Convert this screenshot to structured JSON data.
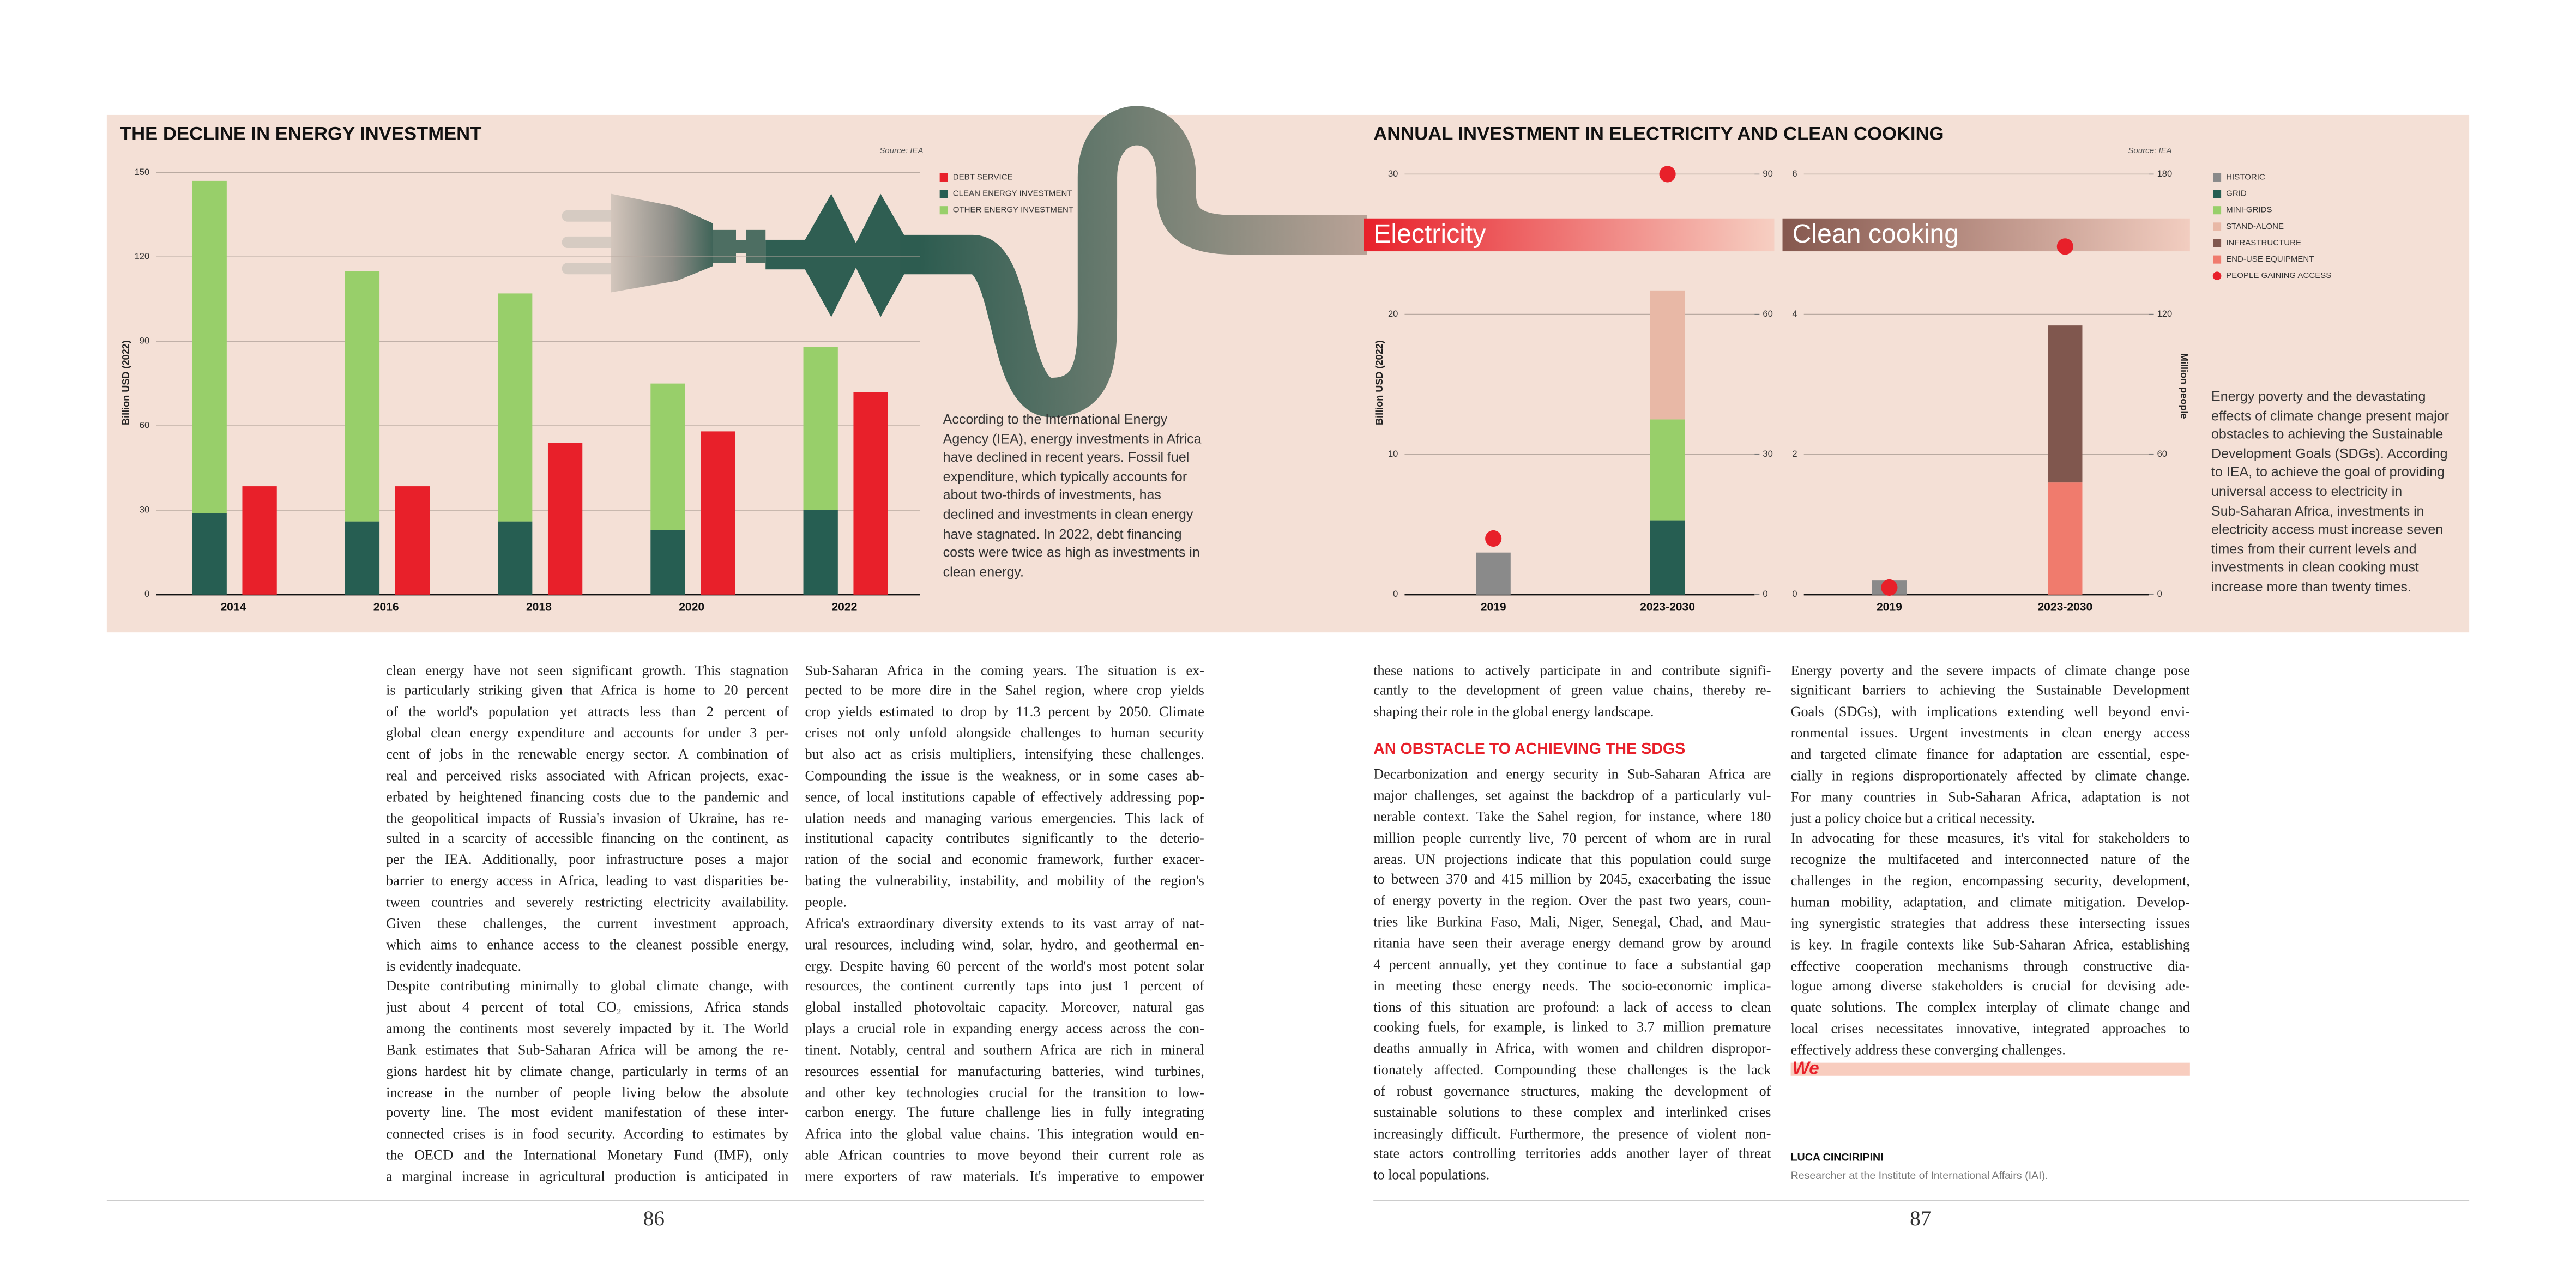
{
  "chart_data": [
    {
      "type": "bar",
      "title": "THE DECLINE IN ENERGY INVESTMENT",
      "source": "Source: IEA",
      "y_label": "Billion USD (2022)",
      "categories": [
        "2014",
        "2016",
        "2018",
        "2020",
        "2022"
      ],
      "series": [
        {
          "name": "DEBT SERVICE",
          "color": "#e8202a",
          "values": [
            38.5,
            38.5,
            54,
            58,
            72
          ]
        },
        {
          "name": "CLEAN ENERGY INVESTMENT",
          "color": "#265e52",
          "values": [
            29,
            26,
            26,
            23,
            30
          ]
        },
        {
          "name": "OTHER ENERGY INVESTMENT",
          "color": "#98cf6a",
          "values": [
            118,
            89,
            81,
            52,
            58
          ]
        }
      ],
      "stacks": [
        [
          1,
          2
        ],
        [
          0
        ]
      ],
      "ylim": [
        0,
        150
      ],
      "yticks": [
        0,
        30,
        60,
        90,
        120,
        150
      ],
      "grid": true,
      "caption": [
        "According to the International Energy",
        "Agency (IEA), energy investments in Africa",
        "have declined in recent years. Fossil fuel",
        "expenditure, which typically accounts for",
        "about two-thirds of investments, has",
        "declined and investments in clean energy",
        "have stagnated. In 2022, debt financing",
        "costs were twice as high as investments in",
        "clean energy."
      ]
    },
    {
      "type": "bar",
      "title": "ANNUAL INVESTMENT IN ELECTRICITY AND CLEAN COOKING",
      "source": "Source: IEA",
      "y_label": "Billion USD (2022)",
      "y2_label": "Million people",
      "legend": [
        {
          "name": "HISTORIC",
          "color": "#8a8a8a"
        },
        {
          "name": "GRID",
          "color": "#265e52"
        },
        {
          "name": "MINI-GRIDS",
          "color": "#98cf6a"
        },
        {
          "name": "STAND-ALONE",
          "color": "#e8b8a6"
        },
        {
          "name": "INFRASTRUCTURE",
          "color": "#80574e"
        },
        {
          "name": "END-USE EQUIPMENT",
          "color": "#f07b6d"
        },
        {
          "name": "PEOPLE GAINING ACCESS",
          "color": "#e8202a"
        }
      ],
      "panels": [
        {
          "label": "Electricity",
          "categories": [
            "2019",
            "2023-2030"
          ],
          "ylim": [
            0,
            30
          ],
          "yticks": [
            0,
            10,
            20,
            30
          ],
          "y2lim": [
            0,
            90
          ],
          "y2ticks": [
            0,
            30,
            60,
            90
          ],
          "grid": true,
          "stack": [
            0,
            1,
            2,
            3
          ],
          "series": [
            {
              "values": [
                3.0,
                null
              ]
            },
            {
              "values": [
                null,
                5.3
              ]
            },
            {
              "values": [
                null,
                7.2
              ]
            },
            {
              "values": [
                null,
                9.2
              ]
            },
            {
              "values": [
                null,
                null
              ]
            },
            {
              "values": [
                null,
                null
              ]
            },
            {
              "axis": "y2",
              "values": [
                12,
                90
              ]
            }
          ]
        },
        {
          "label": "Clean cooking",
          "categories": [
            "2019",
            "2023-2030"
          ],
          "ylim": [
            0,
            6
          ],
          "yticks": [
            0,
            2,
            4,
            6
          ],
          "y2lim": [
            0,
            180
          ],
          "y2ticks": [
            0,
            60,
            120,
            180
          ],
          "grid": true,
          "stack": [
            0,
            5,
            4
          ],
          "series": [
            {
              "values": [
                0.2,
                null
              ]
            },
            {
              "values": [
                null,
                null
              ]
            },
            {
              "values": [
                null,
                null
              ]
            },
            {
              "values": [
                null,
                null
              ]
            },
            {
              "values": [
                null,
                2.24
              ]
            },
            {
              "values": [
                null,
                1.6
              ]
            },
            {
              "axis": "y2",
              "values": [
                3,
                149
              ]
            }
          ]
        }
      ],
      "caption": [
        "Energy poverty and the devastating",
        "effects of climate change present major",
        "obstacles to achieving the Sustainable",
        "Development Goals (SDGs). According",
        "to IEA, to achieve the goal of providing",
        "universal access to electricity in",
        "Sub-Saharan Africa, investments in",
        "electricity access must increase seven",
        "times from their current levels and",
        "investments in clean cooking must",
        "increase more than twenty times."
      ]
    }
  ],
  "columns": [
    [
      {
        "lines": [
          "clean energy have not seen significant growth. This stagnation",
          "is particularly striking given that Africa is home to 20 percent",
          "of the world's population yet attracts less than 2 percent of",
          "global clean energy expenditure and accounts for under 3 per-",
          "cent of jobs in the renewable energy sector. A combination of",
          "real and perceived risks associated with African projects, exac-",
          "erbated by heightened financing costs due to the pandemic and",
          "the geopolitical impacts of Russia's invasion of Ukraine, has re-",
          "sulted in a scarcity of accessible financing on the continent, as",
          "per the IEA. Additionally, poor infrastructure poses a major",
          "barrier to energy access in Africa, leading to vast disparities be-",
          "tween countries and severely restricting electricity availability.",
          "Given these challenges, the current investment approach,",
          "which aims to enhance access to the cleanest possible energy,",
          "is evidently inadequate."
        ]
      },
      {
        "lines": [
          "Despite contributing minimally to global climate change, with",
          "just about 4 percent of total CO₂ emissions, Africa stands",
          "among the continents most severely impacted by it. The World",
          "Bank estimates that Sub-Saharan Africa will be among the re-",
          "gions hardest hit by climate change, particularly in terms of an",
          "increase in the number of people living below the absolute",
          "poverty line. The most evident manifestation of these inter-",
          "connected crises is in food security. According to estimates by",
          "the OECD and the International Monetary Fund (IMF), only",
          "a marginal increase in agricultural production is anticipated in"
        ],
        "open": true
      }
    ],
    [
      {
        "lines": [
          "Sub-Saharan Africa in the coming years. The situation is ex-",
          "pected to be more dire in the Sahel region, where crop yields",
          "crop yields estimated to drop by 11.3 percent by 2050. Climate",
          "crises not only unfold alongside challenges to human security",
          "but also act as crisis multipliers, intensifying these challenges.",
          "Compounding the issue is the weakness, or in some cases ab-",
          "sence, of local institutions capable of effectively addressing pop-",
          "ulation needs and managing various emergencies. This lack of",
          "institutional capacity contributes significantly to the deterio-",
          "ration of the social and economic framework, further exacer-",
          "bating the vulnerability, instability, and mobility of the region's",
          "people."
        ]
      },
      {
        "lines": [
          "Africa's extraordinary diversity extends to its vast array of nat-",
          "ural resources, including wind, solar, hydro, and geothermal en-",
          "ergy. Despite having 60 percent of the world's most potent solar",
          "resources, the continent currently taps into just 1 percent of",
          "global installed photovoltaic capacity. Moreover, natural gas",
          "plays a crucial role in expanding energy access across the con-",
          "tinent. Notably, central and southern Africa are rich in mineral",
          "resources essential for manufacturing batteries, wind turbines,",
          "and other key technologies crucial for the transition to low-",
          "carbon energy. The future challenge lies in fully integrating",
          "Africa into the global value chains. This integration would en-",
          "able African countries to move beyond their current role as",
          "mere exporters of raw materials. It's imperative to empower"
        ],
        "open": true
      }
    ],
    [
      {
        "lines": [
          "these nations to actively participate in and contribute signifi-",
          "cantly to the development of green value chains, thereby re-",
          "shaping their role in the global energy landscape."
        ]
      },
      {
        "heading": "AN OBSTACLE TO ACHIEVING THE SDGS"
      },
      {
        "lines": [
          "Decarbonization and energy security in Sub-Saharan Africa are",
          "major challenges, set against the backdrop of a particularly vul-",
          "nerable context. Take the Sahel region, for instance, where 180",
          "million people currently live, 70 percent of whom are in rural",
          "areas. UN projections indicate that this population could surge",
          "to between 370 and 415 million by 2045, exacerbating the issue",
          "of energy poverty in the region. Over the past two years, coun-",
          "tries like Burkina Faso, Mali, Niger, Senegal, Chad, and Mau-",
          "ritania have seen their average energy demand grow by around",
          "4 percent annually, yet they continue to face a substantial gap",
          "in meeting these energy needs. The socio-economic implica-",
          "tions of this situation are profound: a lack of access to clean",
          "cooking fuels, for example, is linked to 3.7 million premature",
          "deaths annually in Africa, with women and children dispropor-",
          "tionately affected. Compounding these challenges is the lack",
          "of robust governance structures, making the development of",
          "sustainable solutions to these complex and interlinked crises",
          "increasingly difficult. Furthermore, the presence of violent non-",
          "state actors controlling territories adds another layer of threat",
          "to local populations."
        ]
      }
    ],
    [
      {
        "lines": [
          "Energy poverty and the severe impacts of climate change pose",
          "significant barriers to achieving the Sustainable Development",
          "Goals (SDGs), with implications extending well beyond envi-",
          "ronmental issues. Urgent investments in clean energy access",
          "and targeted climate finance for adaptation are essential, espe-",
          "cially in regions disproportionately affected by climate change.",
          "For many countries in Sub-Saharan Africa, adaptation is not",
          "just a policy choice but a critical necessity."
        ]
      },
      {
        "lines": [
          "In advocating for these measures, it's vital for stakeholders to",
          "recognize the multifaceted and interconnected nature of the",
          "challenges in the region, encompassing security, development,",
          "human mobility, adaptation, and climate mitigation. Develop-",
          "ing synergistic strategies that address these intersecting issues",
          "is key. In fragile contexts like Sub-Saharan Africa, establishing",
          "effective cooperation mechanisms through constructive dia-",
          "logue among diverse stakeholders is crucial for devising ade-",
          "quate solutions. The complex interplay of climate change and",
          "local crises necessitates innovative, integrated approaches to",
          "effectively address these converging challenges."
        ]
      }
    ]
  ],
  "logo": "We",
  "signature": {
    "name": "LUCA CINCIRIPINI",
    "role": "Researcher at the Institute of International Affairs (IAI)."
  },
  "page_numbers": [
    "86",
    "87"
  ]
}
